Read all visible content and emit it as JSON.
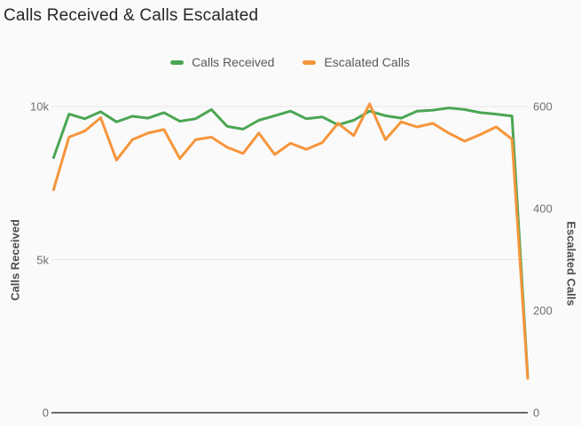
{
  "title": "Calls Received & Calls Escalated",
  "legend": {
    "items": [
      {
        "label": "Calls Received",
        "color": "#4BA654"
      },
      {
        "label": "Escalated Calls",
        "color": "#F6953B"
      }
    ]
  },
  "colors": {
    "background": "#fafafa",
    "grid": "#e7e7e7",
    "axis_line": "#3a3a3a",
    "title_text": "#262626",
    "tick_text": "#6f6f6f"
  },
  "chart_data": {
    "type": "line",
    "title": "Calls Received & Calls Escalated",
    "x_axis": {
      "tick_labels_visible": false
    },
    "grid": "horizontal (left-axis ticks only)",
    "legend_position": "top-center",
    "left_axis": {
      "title": "Calls Received",
      "range": [
        0,
        10000
      ],
      "tick_values": [
        0,
        5000,
        10000
      ],
      "tick_labels": [
        "0",
        "5k",
        "10k"
      ]
    },
    "right_axis": {
      "title": "Escalated Calls",
      "range": [
        0,
        600
      ],
      "tick_values": [
        0,
        200,
        400,
        600
      ],
      "tick_labels": [
        "0",
        "200",
        "400",
        "600"
      ]
    },
    "series": [
      {
        "name": "Calls Received",
        "axis": "left",
        "color": "#4BA654",
        "values": [
          8300,
          9750,
          9600,
          9830,
          9500,
          9680,
          9620,
          9800,
          9520,
          9600,
          9900,
          9350,
          9260,
          9550,
          9700,
          9850,
          9600,
          9660,
          9400,
          9550,
          9850,
          9700,
          9620,
          9850,
          9880,
          9950,
          9900,
          9800,
          9750,
          9690,
          1150
        ]
      },
      {
        "name": "Escalated Calls",
        "axis": "right",
        "color": "#F6953B",
        "values": [
          435,
          540,
          552,
          578,
          495,
          535,
          548,
          555,
          498,
          535,
          540,
          520,
          508,
          548,
          506,
          528,
          516,
          529,
          567,
          543,
          605,
          535,
          570,
          560,
          567,
          548,
          532,
          545,
          560,
          536,
          65
        ]
      }
    ]
  }
}
